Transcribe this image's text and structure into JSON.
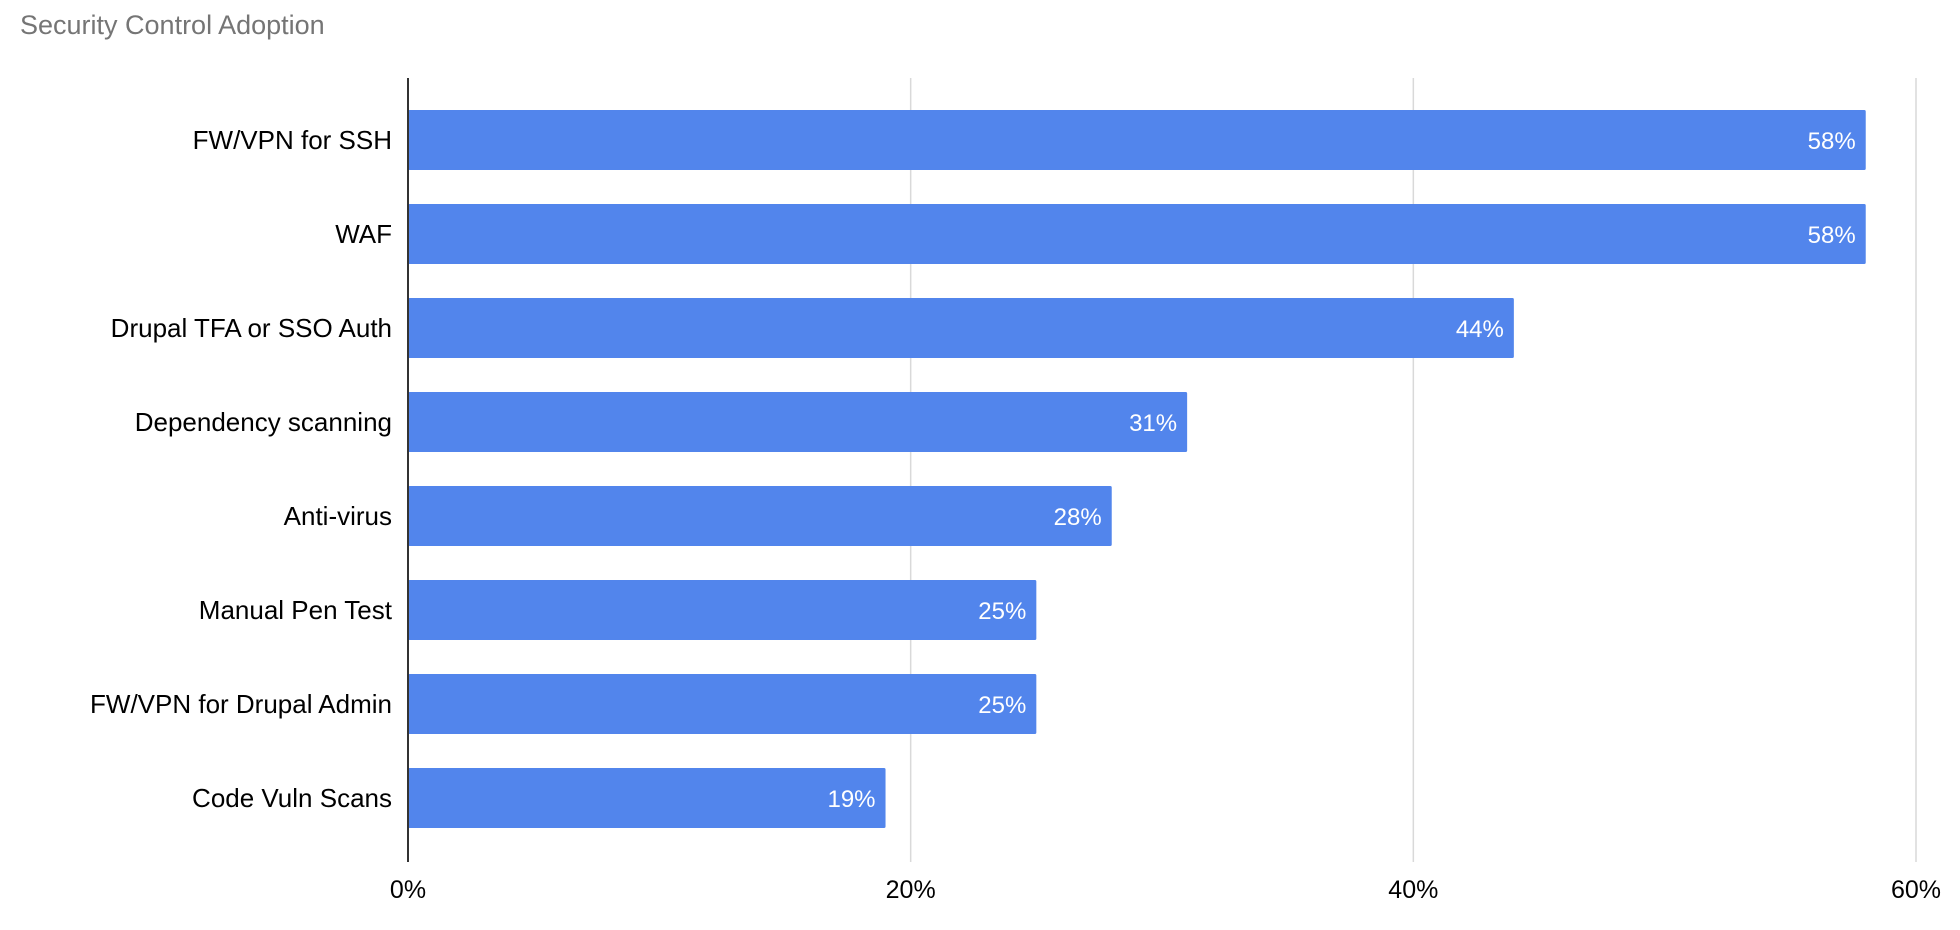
{
  "chart_data": {
    "type": "bar",
    "orientation": "horizontal",
    "title": "Security Control Adoption",
    "categories": [
      "FW/VPN for SSH",
      "WAF",
      "Drupal TFA or SSO Auth",
      "Dependency scanning",
      "Anti-virus",
      "Manual Pen Test",
      "FW/VPN for Drupal Admin",
      "Code Vuln Scans"
    ],
    "values": [
      58,
      58,
      44,
      31,
      28,
      25,
      25,
      19
    ],
    "data_labels": [
      "58%",
      "58%",
      "44%",
      "31%",
      "28%",
      "25%",
      "25%",
      "19%"
    ],
    "x_ticks": [
      {
        "value": 0,
        "label": "0%"
      },
      {
        "value": 20,
        "label": "20%"
      },
      {
        "value": 40,
        "label": "40%"
      },
      {
        "value": 60,
        "label": "60%"
      }
    ],
    "xlabel": "",
    "ylabel": "",
    "xlim": [
      0,
      60
    ],
    "grid": "vertical",
    "legend": "none",
    "colors": {
      "bar": "#5285ec",
      "grid": "#d9d9d9",
      "axis": "#333333",
      "label_text": "#000000",
      "title_text": "#757575",
      "data_label_text": "#ffffff"
    }
  }
}
